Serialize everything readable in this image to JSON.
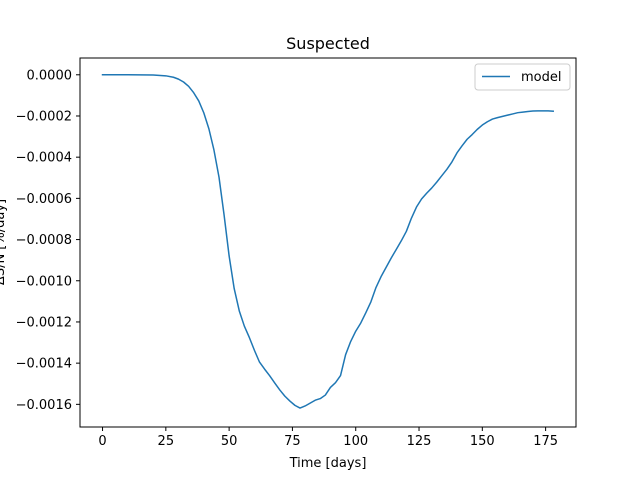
{
  "chart_data": {
    "type": "line",
    "title": "Suspected",
    "xlabel": "Time [days]",
    "ylabel": "ΔS/N [%/day]",
    "xlim": [
      -8.9,
      187
    ],
    "ylim": [
      -0.00171,
      8.15e-05
    ],
    "xticks": [
      0,
      25,
      50,
      75,
      100,
      125,
      150,
      175
    ],
    "xtick_labels": [
      "0",
      "25",
      "50",
      "75",
      "100",
      "125",
      "150",
      "175"
    ],
    "yticks": [
      0.0,
      -0.0002,
      -0.0004,
      -0.0006,
      -0.0008,
      -0.001,
      -0.0012,
      -0.0014,
      -0.0016
    ],
    "ytick_labels": [
      "0.0000",
      "−0.0002",
      "−0.0004",
      "−0.0006",
      "−0.0008",
      "−0.0010",
      "−0.0012",
      "−0.0014",
      "−0.0016"
    ],
    "grid": false,
    "legend_position": "upper right",
    "series": [
      {
        "name": "model",
        "color": "#1f77b4",
        "x": [
          0,
          10,
          20,
          25,
          28,
          30,
          32,
          34,
          36,
          38,
          40,
          42,
          44,
          46,
          48,
          50,
          52,
          54,
          56,
          58,
          60,
          62,
          64,
          66,
          68,
          70,
          72,
          74,
          76,
          78,
          80,
          82,
          84,
          86,
          88,
          90,
          92,
          94,
          96,
          98,
          100,
          102,
          104,
          106,
          108,
          110,
          112,
          114,
          116,
          118,
          120,
          122,
          124,
          126,
          128,
          130,
          132,
          134,
          136,
          138,
          140,
          142,
          144,
          146,
          148,
          150,
          152,
          154,
          156,
          158,
          160,
          162,
          164,
          166,
          168,
          170,
          172,
          174,
          176,
          178
        ],
        "y": [
          0.0,
          0.0,
          -1e-06,
          -5e-06,
          -1.2e-05,
          -2.1e-05,
          -3.5e-05,
          -5.6e-05,
          -8.7e-05,
          -0.000127,
          -0.000185,
          -0.000262,
          -0.000365,
          -0.000497,
          -0.00068,
          -0.00088,
          -0.001038,
          -0.001146,
          -0.00122,
          -0.001276,
          -0.001338,
          -0.001395,
          -0.001429,
          -0.001461,
          -0.001496,
          -0.00153,
          -0.00156,
          -0.001584,
          -0.001605,
          -0.001618,
          -0.001608,
          -0.001594,
          -0.00158,
          -0.001572,
          -0.001555,
          -0.001518,
          -0.001495,
          -0.00146,
          -0.001359,
          -0.001295,
          -0.001245,
          -0.001205,
          -0.001155,
          -0.001102,
          -0.001033,
          -0.00098,
          -0.000935,
          -0.00089,
          -0.000848,
          -0.000806,
          -0.00076,
          -0.000696,
          -0.000642,
          -0.000603,
          -0.000575,
          -0.00055,
          -0.000521,
          -0.00049,
          -0.000459,
          -0.000423,
          -0.000379,
          -0.000345,
          -0.000313,
          -0.00029,
          -0.000265,
          -0.000244,
          -0.000228,
          -0.000215,
          -0.000208,
          -0.000202,
          -0.000196,
          -0.00019,
          -0.000184,
          -0.000181,
          -0.000178,
          -0.000176,
          -0.000175,
          -0.000175,
          -0.000175,
          -0.000177
        ]
      }
    ]
  }
}
